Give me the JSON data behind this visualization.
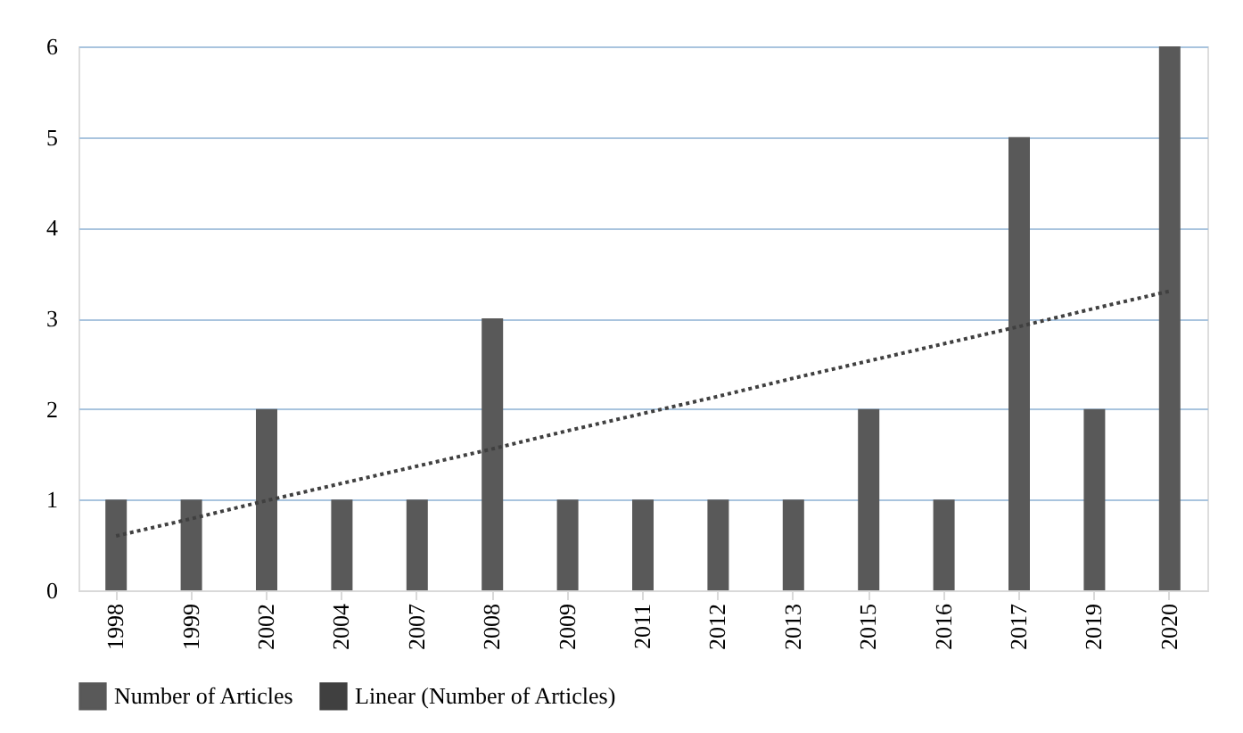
{
  "chart_data": {
    "type": "bar",
    "categories": [
      "1998",
      "1999",
      "2002",
      "2004",
      "2007",
      "2008",
      "2009",
      "2011",
      "2012",
      "2013",
      "2015",
      "2016",
      "2017",
      "2019",
      "2020"
    ],
    "series": [
      {
        "name": "Number of Articles",
        "color": "#595959",
        "values": [
          1,
          1,
          2,
          1,
          1,
          3,
          1,
          1,
          1,
          1,
          2,
          1,
          5,
          2,
          6
        ]
      },
      {
        "name": "Linear (Number of Articles)",
        "type": "line",
        "color": "#404040",
        "line_style": "dotted",
        "values": [
          0.6,
          0.79,
          0.99,
          1.18,
          1.37,
          1.56,
          1.76,
          1.95,
          2.14,
          2.34,
          2.53,
          2.72,
          2.91,
          3.11,
          3.3
        ]
      }
    ],
    "ylim": [
      0,
      6
    ],
    "yticks": [
      0,
      1,
      2,
      3,
      4,
      5,
      6
    ],
    "grid": "y",
    "legend": "bottom"
  }
}
